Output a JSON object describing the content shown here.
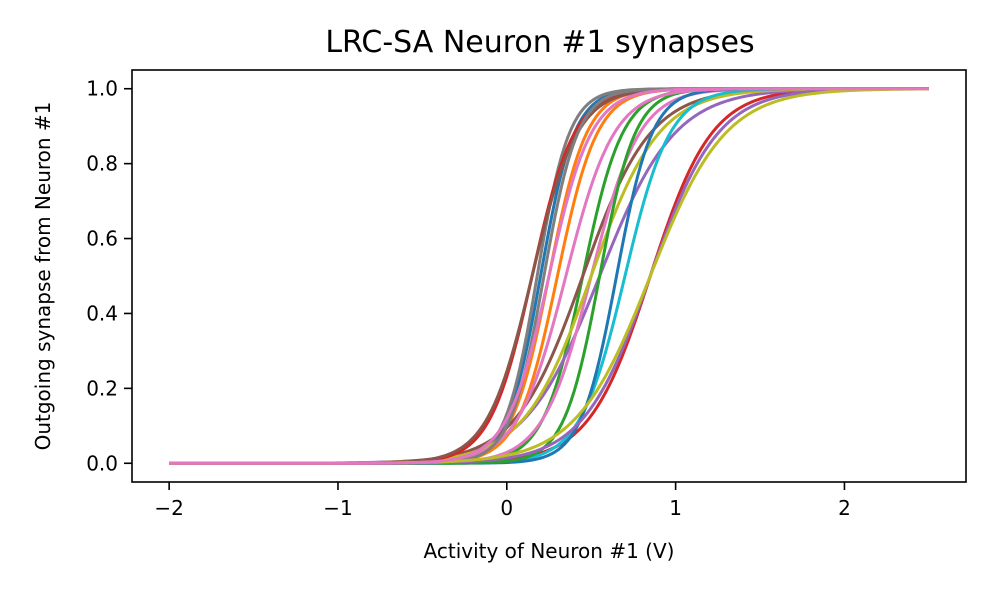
{
  "chart_data": {
    "type": "line",
    "title": "LRC-SA Neuron #1 synapses",
    "xlabel": "Activity of Neuron #1 (V)",
    "ylabel": "Outgoing synapse from Neuron #1",
    "xlim": [
      -2.22,
      2.72
    ],
    "ylim": [
      -0.05,
      1.05
    ],
    "xticks": [
      {
        "value": -2,
        "label": "−2"
      },
      {
        "value": -1,
        "label": "−1"
      },
      {
        "value": 0,
        "label": "0"
      },
      {
        "value": 1,
        "label": "1"
      },
      {
        "value": 2,
        "label": "2"
      }
    ],
    "yticks": [
      {
        "value": 0.0,
        "label": "0.0"
      },
      {
        "value": 0.2,
        "label": "0.2"
      },
      {
        "value": 0.4,
        "label": "0.4"
      },
      {
        "value": 0.6,
        "label": "0.6"
      },
      {
        "value": 0.8,
        "label": "0.8"
      },
      {
        "value": 1.0,
        "label": "1.0"
      }
    ],
    "grid": false,
    "legend": "none",
    "x_range": [
      -2,
      2.5
    ],
    "function": "sigmoid",
    "series": [
      {
        "mu": 0.2,
        "sigma": 10.0,
        "color": "#1f77b4"
      },
      {
        "mu": 0.25,
        "sigma": 9.0,
        "color": "#ff7f0e"
      },
      {
        "mu": 0.45,
        "sigma": 8.5,
        "color": "#2ca02c"
      },
      {
        "mu": 0.85,
        "sigma": 5.5,
        "color": "#d62728"
      },
      {
        "mu": 0.55,
        "sigma": 4.5,
        "color": "#9467bd"
      },
      {
        "mu": 0.45,
        "sigma": 5.0,
        "color": "#8c564b"
      },
      {
        "mu": 0.5,
        "sigma": 7.0,
        "color": "#e377c2"
      },
      {
        "mu": 0.18,
        "sigma": 10.5,
        "color": "#7f7f7f"
      },
      {
        "mu": 0.5,
        "sigma": 5.0,
        "color": "#bcbd22"
      },
      {
        "mu": 0.7,
        "sigma": 7.5,
        "color": "#17becf"
      },
      {
        "mu": 0.65,
        "sigma": 9.5,
        "color": "#1f77b4"
      },
      {
        "mu": 0.3,
        "sigma": 8.5,
        "color": "#ff7f0e"
      },
      {
        "mu": 0.55,
        "sigma": 9.5,
        "color": "#2ca02c"
      },
      {
        "mu": 0.15,
        "sigma": 8.0,
        "color": "#d62728"
      },
      {
        "mu": 0.85,
        "sigma": 5.0,
        "color": "#9467bd"
      },
      {
        "mu": 0.15,
        "sigma": 7.5,
        "color": "#8c564b"
      },
      {
        "mu": 0.35,
        "sigma": 7.0,
        "color": "#e377c2"
      },
      {
        "mu": 0.22,
        "sigma": 10.0,
        "color": "#7f7f7f"
      },
      {
        "mu": 0.85,
        "sigma": 4.5,
        "color": "#bcbd22"
      },
      {
        "mu": 0.25,
        "sigma": 8.0,
        "color": "#e377c2"
      }
    ]
  }
}
